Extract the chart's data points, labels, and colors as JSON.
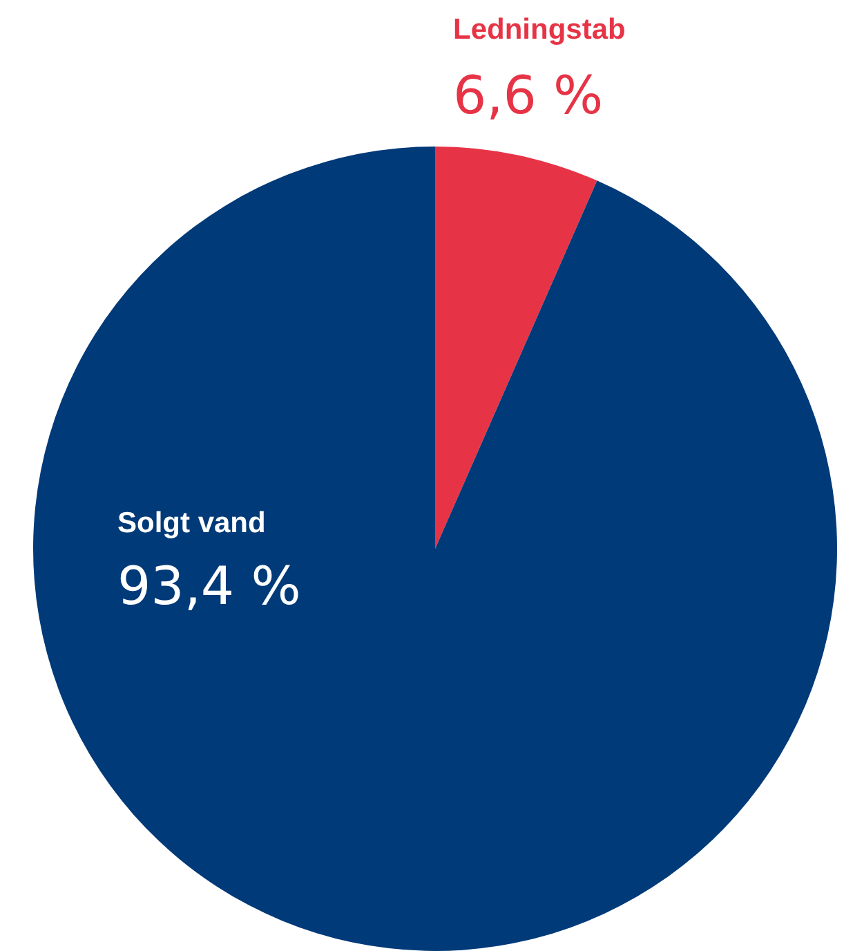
{
  "chart_data": {
    "type": "pie",
    "categories": [
      "Ledningstab",
      "Solgt vand"
    ],
    "values": [
      6.6,
      93.4
    ],
    "colors": [
      "#e63446",
      "#003a78"
    ],
    "value_labels": [
      "6,6 %",
      "93,4 %"
    ],
    "legend": false
  }
}
